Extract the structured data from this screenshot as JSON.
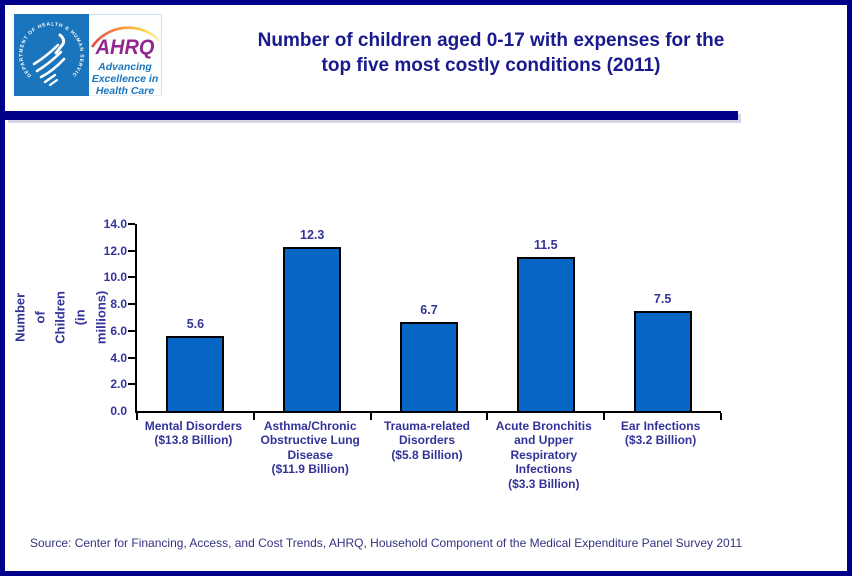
{
  "header": {
    "hhs_logo": {
      "circle_text": "DEPARTMENT OF HEALTH & HUMAN SERVICES · USA"
    },
    "ahrq_logo": {
      "acronym": "AHRQ",
      "tagline": "Advancing\nExcellence in\nHealth Care"
    },
    "title": "Number of children aged 0-17 with expenses for the\ntop five most costly conditions (2011)"
  },
  "chart_data": {
    "type": "bar",
    "title": "Number of children aged 0-17 with expenses for the top five most costly conditions (2011)",
    "xlabel": "",
    "ylabel": "Number of Children\n(in millions)",
    "ylim": [
      0,
      14
    ],
    "yticks": [
      0,
      2,
      4,
      6,
      8,
      10,
      12,
      14
    ],
    "ytick_labels": [
      "0.0",
      "2.0",
      "4.0",
      "6.0",
      "8.0",
      "10.0",
      "12.0",
      "14.0"
    ],
    "categories": [
      "Mental Disorders\n($13.8 Billion)",
      "Asthma/Chronic\nObstructive Lung\nDisease\n($11.9 Billion)",
      "Trauma-related\nDisorders\n($5.8 Billion)",
      "Acute Bronchitis\nand Upper\nRespiratory\nInfections\n($3.3 Billion)",
      "Ear Infections\n($3.2 Billion)"
    ],
    "values": [
      5.6,
      12.3,
      6.7,
      11.5,
      7.5
    ],
    "value_labels": [
      "5.6",
      "12.3",
      "6.7",
      "11.5",
      "7.5"
    ],
    "bar_color": "#0666c6",
    "bar_border_color": "#000000",
    "label_color": "#333399",
    "grid": false,
    "legend": null
  },
  "footer": {
    "source": "Source: Center for Financing, Access, and Cost Trends, AHRQ, Household Component of the Medical Expenditure Panel Survey 2011"
  },
  "colors": {
    "page_border": "#00008b",
    "divider": "#00008b",
    "title": "#1a1a8f",
    "hhs_blue": "#1b75bc",
    "ahrq_purple": "#92278f",
    "tagline_blue": "#1b76bd",
    "footer_text": "#333380"
  }
}
